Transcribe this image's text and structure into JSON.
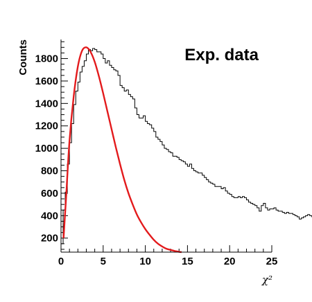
{
  "chart_data": {
    "type": "line",
    "title": "",
    "xlabel": "χ²",
    "ylabel": "Counts",
    "legend_text": "Exp. data",
    "legend_placement": "top-right",
    "grid": false,
    "xlim": [
      0,
      25
    ],
    "ylim": [
      75,
      1970
    ],
    "x_ticks": [
      0,
      5,
      10,
      15,
      20,
      25
    ],
    "x_tick_labels": [
      "0",
      "5",
      "10",
      "15",
      "20",
      "25"
    ],
    "y_ticks": [
      200,
      400,
      600,
      800,
      1000,
      1200,
      1400,
      1600,
      1800
    ],
    "y_tick_labels": [
      "200",
      "400",
      "600",
      "800",
      "1000",
      "1200",
      "1400",
      "1600",
      "1800"
    ],
    "series": [
      {
        "kind": "histogram",
        "color": "#000000",
        "bin_width": 0.25,
        "values": [
          150,
          450,
          610,
          860,
          1050,
          1220,
          1390,
          1510,
          1590,
          1680,
          1730,
          1780,
          1840,
          1880,
          1870,
          1890,
          1880,
          1860,
          1860,
          1840,
          1800,
          1760,
          1780,
          1740,
          1720,
          1700,
          1690,
          1650,
          1560,
          1540,
          1510,
          1520,
          1480,
          1460,
          1440,
          1360,
          1300,
          1270,
          1270,
          1290,
          1240,
          1220,
          1210,
          1180,
          1150,
          1100,
          1080,
          1060,
          1030,
          1000,
          990,
          970,
          960,
          930,
          930,
          920,
          900,
          890,
          880,
          860,
          840,
          860,
          820,
          800,
          790,
          780,
          780,
          760,
          740,
          720,
          700,
          690,
          680,
          660,
          660,
          660,
          640,
          650,
          620,
          600,
          590,
          570,
          560,
          560,
          570,
          560,
          570,
          560,
          540,
          520,
          510,
          500,
          490,
          470,
          440,
          490,
          510,
          470,
          450,
          460,
          460,
          470,
          450,
          440,
          440,
          430,
          420,
          430,
          420,
          420,
          410,
          400,
          390,
          370,
          380,
          390,
          400,
          410,
          400,
          390
        ]
      },
      {
        "kind": "fit_curve",
        "color": "#e31a1c",
        "x": [
          0.3,
          0.6,
          1.0,
          1.5,
          2.0,
          2.5,
          3.0,
          3.5,
          4.0,
          4.5,
          5.0,
          5.5,
          6.0,
          6.5,
          7.0,
          7.5,
          8.0,
          8.5,
          9.0,
          9.5,
          10.0,
          10.5,
          11.0,
          11.5,
          12.0,
          12.5,
          13.0,
          13.5,
          14.0,
          14.3
        ],
        "values": [
          200,
          560,
          1060,
          1460,
          1730,
          1870,
          1900,
          1860,
          1770,
          1640,
          1490,
          1330,
          1170,
          1010,
          860,
          720,
          600,
          500,
          410,
          340,
          280,
          230,
          185,
          150,
          125,
          105,
          95,
          85,
          78,
          75
        ]
      }
    ]
  }
}
